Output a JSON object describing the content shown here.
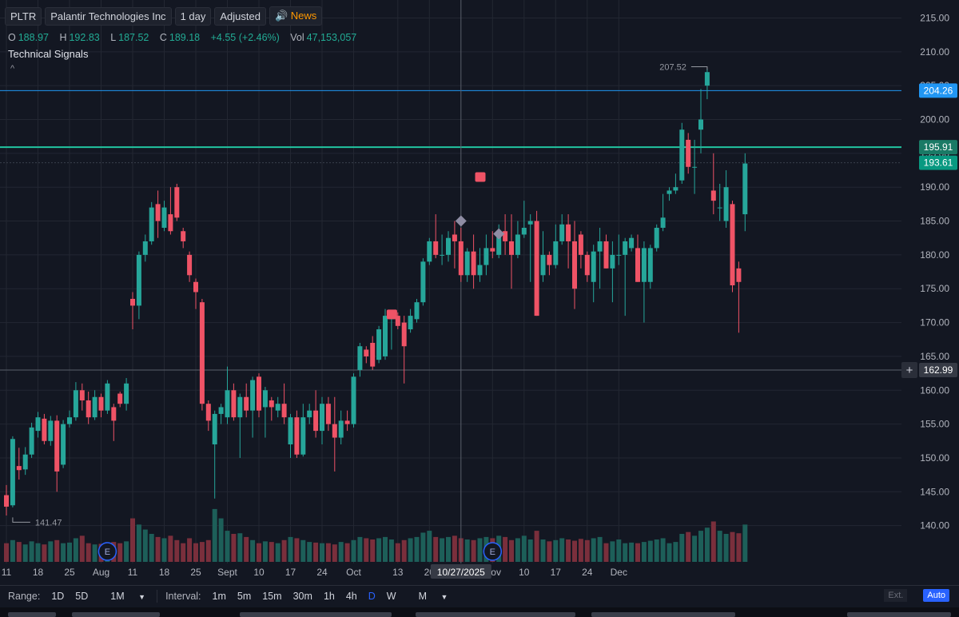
{
  "header": {
    "symbol": "PLTR",
    "name": "Palantir Technologies Inc",
    "interval": "1 day",
    "adjusted": "Adjusted",
    "news": "News"
  },
  "ohlc": {
    "o_label": "O",
    "o": "188.97",
    "h_label": "H",
    "h": "192.83",
    "l_label": "L",
    "l": "187.52",
    "c_label": "C",
    "c": "189.18",
    "change": "+4.55 (+2.46%)",
    "vol_label": "Vol",
    "vol": "47,153,057"
  },
  "signals_label": "Technical Signals",
  "bottom_bar": {
    "range_label": "Range:",
    "ranges": [
      "1D",
      "5D",
      "1M"
    ],
    "interval_label": "Interval:",
    "intervals": [
      "1m",
      "5m",
      "15m",
      "30m",
      "1h",
      "4h",
      "D",
      "W",
      "M"
    ],
    "active_interval": "D",
    "ext": "Ext.",
    "auto": "Auto"
  },
  "colors": {
    "up": "#26a69a",
    "down": "#ef5366",
    "background": "#131722",
    "grid": "#232732",
    "hline_blue": "#2196f3",
    "hline_teal": "#22c5a0",
    "last_price": "#089981"
  },
  "chart_data": {
    "type": "candlestick",
    "y_range": [
      135,
      216
    ],
    "y_ticks": [
      140,
      145,
      150,
      155,
      160,
      165,
      170,
      175,
      180,
      185,
      190,
      195,
      200,
      205,
      210,
      215
    ],
    "x_labels": [
      {
        "i": 0,
        "text": "11"
      },
      {
        "i": 5,
        "text": "18"
      },
      {
        "i": 10,
        "text": "25"
      },
      {
        "i": 15,
        "text": "Aug"
      },
      {
        "i": 20,
        "text": "11"
      },
      {
        "i": 25,
        "text": "18"
      },
      {
        "i": 30,
        "text": "25"
      },
      {
        "i": 35,
        "text": "Sept"
      },
      {
        "i": 40,
        "text": "10"
      },
      {
        "i": 45,
        "text": "17"
      },
      {
        "i": 50,
        "text": "24"
      },
      {
        "i": 55,
        "text": "Oct"
      },
      {
        "i": 62,
        "text": "13"
      },
      {
        "i": 67,
        "text": "20"
      },
      {
        "i": 77,
        "text": "Nov"
      },
      {
        "i": 82,
        "text": "10"
      },
      {
        "i": 87,
        "text": "17"
      },
      {
        "i": 92,
        "text": "24"
      },
      {
        "i": 97,
        "text": "Dec"
      }
    ],
    "crosshair": {
      "i": 72,
      "date": "10/27/2025",
      "price": "162.99"
    },
    "price_labels": {
      "blue_line": "204.26",
      "teal_line": "195.91",
      "last": "193.61"
    },
    "annotations": {
      "high": "207.52",
      "low": "141.47"
    },
    "earnings": [
      {
        "i": 16,
        "text": "E"
      },
      {
        "i": 77,
        "text": "E"
      }
    ],
    "markers": [
      {
        "type": "square",
        "i": 61,
        "y": 171.2,
        "color": "#ef5366"
      },
      {
        "type": "square",
        "i": 75,
        "y": 191.5,
        "color": "#ef5366"
      },
      {
        "type": "diamond",
        "i": 72,
        "y": 185.0,
        "color": "#8e8ca3"
      },
      {
        "type": "diamond",
        "i": 78,
        "y": 183.1,
        "color": "#8e8ca3"
      }
    ],
    "candles": [
      [
        0,
        144.5,
        142.8,
        146.0,
        141.5,
        30
      ],
      [
        1,
        143.0,
        152.8,
        153.2,
        142.7,
        35
      ],
      [
        2,
        148.8,
        148.2,
        151.5,
        146.8,
        32
      ],
      [
        3,
        148.3,
        150.5,
        151.6,
        147.5,
        28
      ],
      [
        4,
        150.5,
        154.5,
        155.2,
        150.0,
        33
      ],
      [
        5,
        154.0,
        156.0,
        156.8,
        153.0,
        30
      ],
      [
        6,
        155.8,
        152.5,
        156.5,
        152.0,
        28
      ],
      [
        7,
        152.5,
        155.5,
        156.2,
        151.8,
        33
      ],
      [
        8,
        155.5,
        148.0,
        156.3,
        145.0,
        35
      ],
      [
        9,
        149.0,
        155.0,
        155.6,
        148.5,
        30
      ],
      [
        10,
        155.0,
        156.0,
        157.0,
        154.5,
        31
      ],
      [
        11,
        156.0,
        160.0,
        161.2,
        155.5,
        38
      ],
      [
        12,
        160.0,
        158.5,
        161.0,
        157.0,
        42
      ],
      [
        13,
        158.5,
        156.0,
        159.8,
        155.0,
        30
      ],
      [
        14,
        156.0,
        159.0,
        160.0,
        155.6,
        28
      ],
      [
        15,
        159.0,
        157.0,
        159.5,
        156.0,
        29
      ],
      [
        16,
        157.0,
        161.0,
        161.5,
        156.5,
        31
      ],
      [
        17,
        157.5,
        155.5,
        158.0,
        152.5,
        32
      ],
      [
        18,
        159.5,
        158.0,
        159.8,
        157.5,
        30
      ],
      [
        19,
        158.0,
        161.0,
        161.8,
        157.0,
        33
      ],
      [
        20,
        173.5,
        172.5,
        174.5,
        169.0,
        70
      ],
      [
        21,
        172.5,
        180.0,
        180.5,
        170.5,
        60
      ],
      [
        22,
        180.0,
        182.0,
        183.0,
        179.0,
        52
      ],
      [
        23,
        182.0,
        187.0,
        187.8,
        181.5,
        45
      ],
      [
        24,
        187.5,
        185.0,
        189.5,
        182.5,
        40
      ],
      [
        25,
        184.0,
        187.0,
        188.0,
        183.5,
        38
      ],
      [
        26,
        186.0,
        183.5,
        190.0,
        183.0,
        42
      ],
      [
        27,
        190.0,
        185.5,
        190.5,
        185.0,
        35
      ],
      [
        28,
        183.5,
        182.0,
        184.0,
        181.0,
        30
      ],
      [
        29,
        180.0,
        177.0,
        180.5,
        176.0,
        38
      ],
      [
        30,
        176.0,
        174.5,
        176.5,
        172.0,
        30
      ],
      [
        31,
        173.0,
        158.0,
        173.5,
        157.0,
        32
      ],
      [
        32,
        158.0,
        155.5,
        158.5,
        154.0,
        35
      ],
      [
        33,
        152.0,
        156.5,
        157.0,
        144.0,
        85
      ],
      [
        34,
        156.5,
        157.5,
        158.0,
        155.0,
        70
      ],
      [
        35,
        156.0,
        160.0,
        163.5,
        155.0,
        50
      ],
      [
        36,
        160.0,
        156.0,
        161.0,
        155.5,
        45
      ],
      [
        37,
        156.0,
        159.0,
        159.5,
        150.0,
        46
      ],
      [
        38,
        159.0,
        157.0,
        161.0,
        156.0,
        40
      ],
      [
        39,
        157.0,
        161.5,
        162.0,
        153.0,
        35
      ],
      [
        40,
        162.0,
        157.0,
        162.5,
        156.0,
        30
      ],
      [
        41,
        157.5,
        160.0,
        160.5,
        153.0,
        33
      ],
      [
        42,
        158.5,
        157.5,
        159.0,
        155.5,
        32
      ],
      [
        43,
        157.0,
        158.0,
        159.0,
        156.0,
        30
      ],
      [
        44,
        158.0,
        156.0,
        161.0,
        155.0,
        35
      ],
      [
        45,
        152.0,
        156.0,
        156.5,
        150.0,
        40
      ],
      [
        46,
        156.0,
        150.5,
        157.0,
        150.0,
        38
      ],
      [
        47,
        150.5,
        156.0,
        158.0,
        150.2,
        35
      ],
      [
        48,
        156.0,
        157.0,
        158.0,
        155.0,
        32
      ],
      [
        49,
        157.0,
        154.0,
        160.0,
        153.0,
        31
      ],
      [
        50,
        154.0,
        158.0,
        159.0,
        152.0,
        30
      ],
      [
        51,
        158.0,
        155.0,
        159.0,
        154.0,
        30
      ],
      [
        52,
        155.0,
        153.0,
        159.0,
        148.0,
        28
      ],
      [
        53,
        153.0,
        155.5,
        157.0,
        152.0,
        32
      ],
      [
        54,
        155.5,
        155.0,
        157.0,
        154.0,
        30
      ],
      [
        55,
        155.0,
        162.0,
        162.5,
        154.5,
        35
      ],
      [
        56,
        163.0,
        166.5,
        167.0,
        162.0,
        40
      ],
      [
        57,
        166.0,
        165.0,
        166.5,
        164.0,
        38
      ],
      [
        58,
        167.0,
        163.5,
        168.0,
        163.0,
        36
      ],
      [
        59,
        164.5,
        169.0,
        169.5,
        164.0,
        38
      ],
      [
        60,
        165.0,
        171.0,
        172.0,
        164.5,
        40
      ],
      [
        61,
        170.5,
        171.0,
        171.5,
        166.0,
        36
      ],
      [
        62,
        171.0,
        169.5,
        171.5,
        169.0,
        30
      ],
      [
        63,
        170.0,
        166.5,
        171.0,
        161.0,
        35
      ],
      [
        64,
        169.0,
        171.0,
        172.0,
        168.5,
        38
      ],
      [
        65,
        170.5,
        173.0,
        173.5,
        170.0,
        40
      ],
      [
        66,
        173.0,
        179.0,
        179.5,
        172.5,
        47
      ],
      [
        67,
        179.0,
        182.0,
        182.5,
        178.5,
        50
      ],
      [
        68,
        182.0,
        180.0,
        186.0,
        179.5,
        40
      ],
      [
        69,
        180.0,
        180.0,
        183.0,
        178.5,
        38
      ],
      [
        70,
        180.0,
        182.5,
        183.5,
        179.0,
        40
      ],
      [
        71,
        183.0,
        182.0,
        185.0,
        178.0,
        42
      ],
      [
        72,
        182.0,
        177.0,
        184.0,
        176.0,
        38
      ],
      [
        73,
        177.0,
        180.5,
        181.0,
        176.0,
        36
      ],
      [
        74,
        180.5,
        177.0,
        183.0,
        175.0,
        35
      ],
      [
        75,
        177.0,
        178.5,
        181.0,
        176.0,
        38
      ],
      [
        76,
        178.5,
        181.0,
        183.0,
        177.0,
        40
      ],
      [
        77,
        181.0,
        180.5,
        183.5,
        179.5,
        38
      ],
      [
        78,
        180.0,
        183.5,
        184.5,
        179.5,
        42
      ],
      [
        79,
        183.5,
        182.0,
        186.0,
        180.0,
        40
      ],
      [
        80,
        182.0,
        180.0,
        186.0,
        175.0,
        35
      ],
      [
        81,
        180.0,
        183.0,
        185.0,
        179.5,
        38
      ],
      [
        82,
        183.0,
        184.0,
        188.0,
        182.5,
        42
      ],
      [
        83,
        184.5,
        185.0,
        186.0,
        176.0,
        36
      ],
      [
        84,
        185.0,
        171.0,
        186.5,
        171.0,
        50
      ],
      [
        85,
        177.0,
        180.0,
        183.5,
        176.0,
        36
      ],
      [
        86,
        180.0,
        178.5,
        180.5,
        177.0,
        33
      ],
      [
        87,
        178.5,
        182.0,
        184.5,
        178.0,
        35
      ],
      [
        88,
        182.0,
        184.5,
        186.0,
        181.5,
        38
      ],
      [
        89,
        184.5,
        182.0,
        186.0,
        178.0,
        36
      ],
      [
        90,
        182.0,
        175.0,
        185.0,
        172.0,
        34
      ],
      [
        91,
        183.0,
        180.0,
        183.5,
        178.0,
        37
      ],
      [
        92,
        180.0,
        177.0,
        180.5,
        176.0,
        35
      ],
      [
        93,
        176.0,
        180.5,
        181.5,
        173.0,
        38
      ],
      [
        94,
        180.5,
        182.0,
        184.0,
        175.0,
        40
      ],
      [
        95,
        182.0,
        178.0,
        183.0,
        178.0,
        30
      ],
      [
        96,
        178.0,
        180.0,
        182.0,
        173.0,
        33
      ],
      [
        97,
        180.0,
        180.0,
        183.0,
        178.5,
        36
      ],
      [
        98,
        180.0,
        182.0,
        182.5,
        171.0,
        30
      ],
      [
        99,
        181.0,
        182.5,
        183.0,
        180.5,
        31
      ],
      [
        100,
        181.0,
        176.0,
        183.0,
        176.0,
        30
      ],
      [
        101,
        176.0,
        181.0,
        182.0,
        170.0,
        32
      ],
      [
        102,
        176.0,
        181.0,
        181.5,
        175.0,
        34
      ],
      [
        103,
        181.0,
        184.0,
        184.5,
        180.5,
        36
      ],
      [
        104,
        184.0,
        185.5,
        189.0,
        183.5,
        38
      ],
      [
        105,
        189.0,
        189.5,
        190.0,
        188.0,
        30
      ],
      [
        106,
        189.5,
        190.0,
        192.0,
        189.0,
        32
      ],
      [
        107,
        191.0,
        198.5,
        199.5,
        190.5,
        45
      ],
      [
        108,
        197.0,
        193.0,
        198.0,
        192.0,
        48
      ],
      [
        109,
        193.0,
        193.0,
        197.0,
        189.0,
        42
      ],
      [
        110,
        198.5,
        200.0,
        204.5,
        195.0,
        50
      ],
      [
        111,
        205.0,
        207.0,
        207.5,
        203.0,
        55
      ],
      [
        112,
        189.5,
        188.0,
        195.0,
        186.0,
        65
      ],
      [
        113,
        187.0,
        187.0,
        190.5,
        185.0,
        50
      ],
      [
        114,
        185.0,
        190.0,
        192.5,
        184.0,
        45
      ],
      [
        115,
        187.5,
        175.5,
        188.0,
        174.5,
        48
      ],
      [
        116,
        178.0,
        176.0,
        179.0,
        168.5,
        46
      ],
      [
        117,
        186.0,
        193.5,
        195.0,
        183.5,
        60
      ]
    ]
  }
}
